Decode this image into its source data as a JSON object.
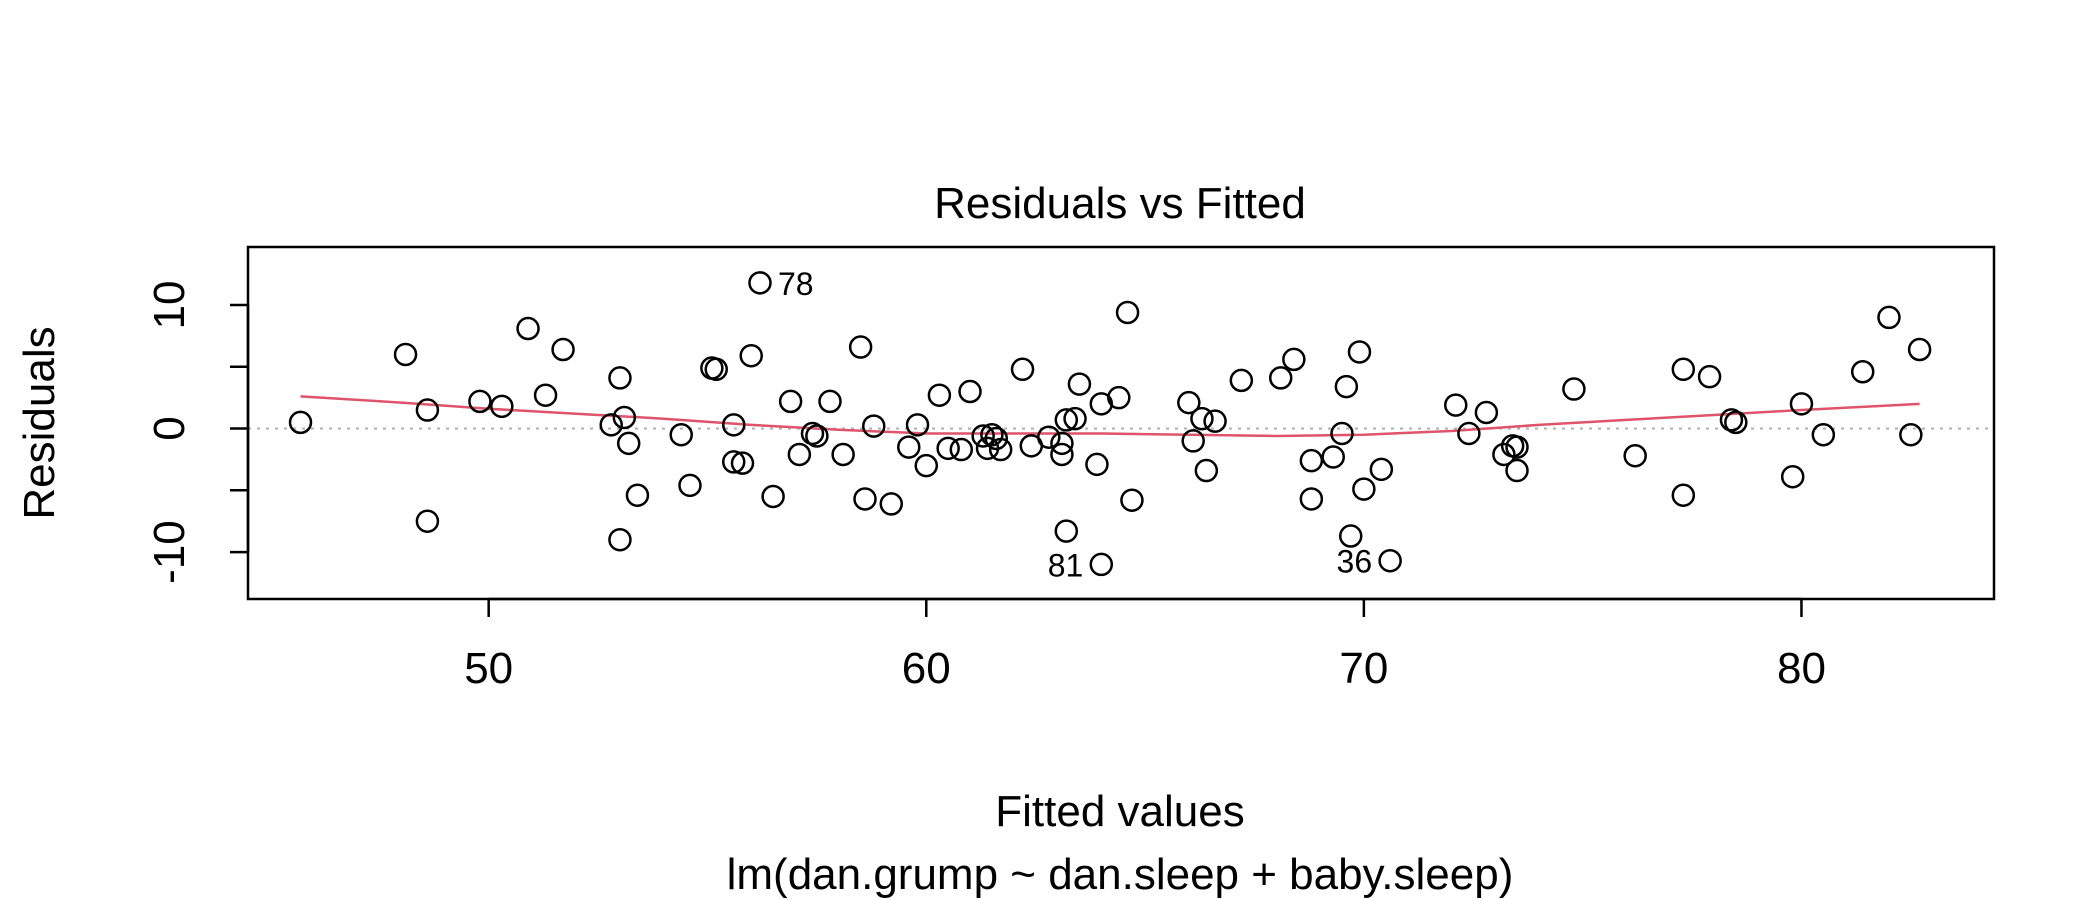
{
  "chart_data": {
    "type": "scatter",
    "title": "Residuals vs Fitted",
    "xlabel": "Fitted values",
    "subtitle": "lm(dan.grump ~ dan.sleep + baby.sleep)",
    "ylabel": "Residuals",
    "xlim": [
      44.5,
      84.4
    ],
    "ylim": [
      -13.8,
      14.7
    ],
    "x_ticks": [
      50,
      60,
      70,
      80
    ],
    "x_tick_labels": [
      "50",
      "60",
      "70",
      "80"
    ],
    "y_ticks": [
      -10,
      -5,
      0,
      5,
      10
    ],
    "y_tick_labels": [
      "-10",
      "",
      "0",
      "",
      "10"
    ],
    "reference_line": {
      "y": 0,
      "style": "dotted",
      "color": "#b3b3b3"
    },
    "points": [
      {
        "x": 45.7,
        "y": 0.5
      },
      {
        "x": 48.1,
        "y": 6.0
      },
      {
        "x": 48.6,
        "y": 1.5
      },
      {
        "x": 48.6,
        "y": -7.5
      },
      {
        "x": 49.8,
        "y": 2.2
      },
      {
        "x": 50.3,
        "y": 1.8
      },
      {
        "x": 50.9,
        "y": 8.1
      },
      {
        "x": 51.3,
        "y": 2.7
      },
      {
        "x": 51.7,
        "y": 6.4
      },
      {
        "x": 52.8,
        "y": 0.3
      },
      {
        "x": 53.0,
        "y": -9.0
      },
      {
        "x": 53.0,
        "y": 4.1
      },
      {
        "x": 53.1,
        "y": 0.9
      },
      {
        "x": 53.2,
        "y": -1.2
      },
      {
        "x": 53.4,
        "y": -5.4
      },
      {
        "x": 54.4,
        "y": -0.5
      },
      {
        "x": 54.6,
        "y": -4.6
      },
      {
        "x": 55.1,
        "y": 4.9
      },
      {
        "x": 55.2,
        "y": 4.8
      },
      {
        "x": 55.6,
        "y": 0.3
      },
      {
        "x": 55.6,
        "y": -2.7
      },
      {
        "x": 55.8,
        "y": -2.8
      },
      {
        "x": 56.0,
        "y": 5.9
      },
      {
        "x": 56.2,
        "y": 11.8
      },
      {
        "x": 56.5,
        "y": -5.5
      },
      {
        "x": 56.9,
        "y": 2.2
      },
      {
        "x": 57.1,
        "y": -2.1
      },
      {
        "x": 57.4,
        "y": -0.4
      },
      {
        "x": 57.5,
        "y": -0.6
      },
      {
        "x": 57.8,
        "y": 2.2
      },
      {
        "x": 58.1,
        "y": -2.1
      },
      {
        "x": 58.5,
        "y": 6.6
      },
      {
        "x": 58.6,
        "y": -5.7
      },
      {
        "x": 58.8,
        "y": 0.2
      },
      {
        "x": 59.2,
        "y": -6.1
      },
      {
        "x": 59.6,
        "y": -1.5
      },
      {
        "x": 59.8,
        "y": 0.3
      },
      {
        "x": 60.0,
        "y": -3.0
      },
      {
        "x": 60.3,
        "y": 2.7
      },
      {
        "x": 60.5,
        "y": -1.6
      },
      {
        "x": 60.8,
        "y": -1.7
      },
      {
        "x": 61.0,
        "y": 3.0
      },
      {
        "x": 61.3,
        "y": -0.6
      },
      {
        "x": 61.4,
        "y": -1.6
      },
      {
        "x": 61.5,
        "y": -0.5
      },
      {
        "x": 61.6,
        "y": -0.8
      },
      {
        "x": 61.7,
        "y": -1.7
      },
      {
        "x": 62.2,
        "y": 4.8
      },
      {
        "x": 62.4,
        "y": -1.4
      },
      {
        "x": 62.8,
        "y": -0.7
      },
      {
        "x": 63.1,
        "y": -1.2
      },
      {
        "x": 63.1,
        "y": -2.1
      },
      {
        "x": 63.2,
        "y": -8.3
      },
      {
        "x": 63.2,
        "y": 0.7
      },
      {
        "x": 63.4,
        "y": 0.8
      },
      {
        "x": 63.5,
        "y": 3.6
      },
      {
        "x": 63.9,
        "y": -2.9
      },
      {
        "x": 64.0,
        "y": 2.0
      },
      {
        "x": 64.0,
        "y": -11.0
      },
      {
        "x": 64.4,
        "y": 2.5
      },
      {
        "x": 64.6,
        "y": 9.4
      },
      {
        "x": 64.7,
        "y": -5.8
      },
      {
        "x": 66.0,
        "y": 2.1
      },
      {
        "x": 66.1,
        "y": -1.0
      },
      {
        "x": 66.3,
        "y": 0.8
      },
      {
        "x": 66.4,
        "y": -3.4
      },
      {
        "x": 66.6,
        "y": 0.6
      },
      {
        "x": 67.2,
        "y": 3.9
      },
      {
        "x": 68.1,
        "y": 4.1
      },
      {
        "x": 68.4,
        "y": 5.6
      },
      {
        "x": 68.8,
        "y": -2.6
      },
      {
        "x": 68.8,
        "y": -5.7
      },
      {
        "x": 69.3,
        "y": -2.3
      },
      {
        "x": 69.5,
        "y": -0.4
      },
      {
        "x": 69.6,
        "y": 3.4
      },
      {
        "x": 69.7,
        "y": -8.7
      },
      {
        "x": 69.9,
        "y": 6.2
      },
      {
        "x": 70.0,
        "y": -4.9
      },
      {
        "x": 70.4,
        "y": -3.3
      },
      {
        "x": 70.6,
        "y": -10.7
      },
      {
        "x": 72.1,
        "y": 1.9
      },
      {
        "x": 72.4,
        "y": -0.4
      },
      {
        "x": 72.8,
        "y": 1.3
      },
      {
        "x": 73.2,
        "y": -2.1
      },
      {
        "x": 73.4,
        "y": -1.4
      },
      {
        "x": 73.5,
        "y": -3.4
      },
      {
        "x": 73.5,
        "y": -1.5
      },
      {
        "x": 74.8,
        "y": 3.2
      },
      {
        "x": 76.2,
        "y": -2.2
      },
      {
        "x": 77.3,
        "y": 4.8
      },
      {
        "x": 77.3,
        "y": -5.4
      },
      {
        "x": 77.9,
        "y": 4.2
      },
      {
        "x": 78.4,
        "y": 0.7
      },
      {
        "x": 78.5,
        "y": 0.5
      },
      {
        "x": 79.8,
        "y": -3.9
      },
      {
        "x": 80.0,
        "y": 2.0
      },
      {
        "x": 80.5,
        "y": -0.5
      },
      {
        "x": 81.4,
        "y": 4.6
      },
      {
        "x": 82.0,
        "y": 9.0
      },
      {
        "x": 82.5,
        "y": -0.5
      },
      {
        "x": 82.7,
        "y": 6.4
      }
    ],
    "labels": [
      {
        "text": "78",
        "x": 56.2,
        "y": 11.8,
        "side": "right"
      },
      {
        "text": "81",
        "x": 64.0,
        "y": -11.0,
        "side": "left"
      },
      {
        "text": "36",
        "x": 70.6,
        "y": -10.7,
        "side": "left"
      }
    ],
    "smooth_line": {
      "color": "#df536b",
      "x": [
        45.7,
        48.0,
        50.0,
        52.0,
        54.0,
        56.0,
        58.0,
        60.0,
        62.0,
        64.0,
        66.0,
        68.0,
        70.0,
        72.0,
        74.0,
        76.0,
        78.0,
        80.0,
        82.7
      ],
      "y": [
        2.6,
        2.1,
        1.6,
        1.2,
        0.8,
        0.3,
        -0.1,
        -0.4,
        -0.4,
        -0.4,
        -0.5,
        -0.6,
        -0.5,
        -0.2,
        0.3,
        0.7,
        1.1,
        1.5,
        2.0
      ]
    }
  }
}
